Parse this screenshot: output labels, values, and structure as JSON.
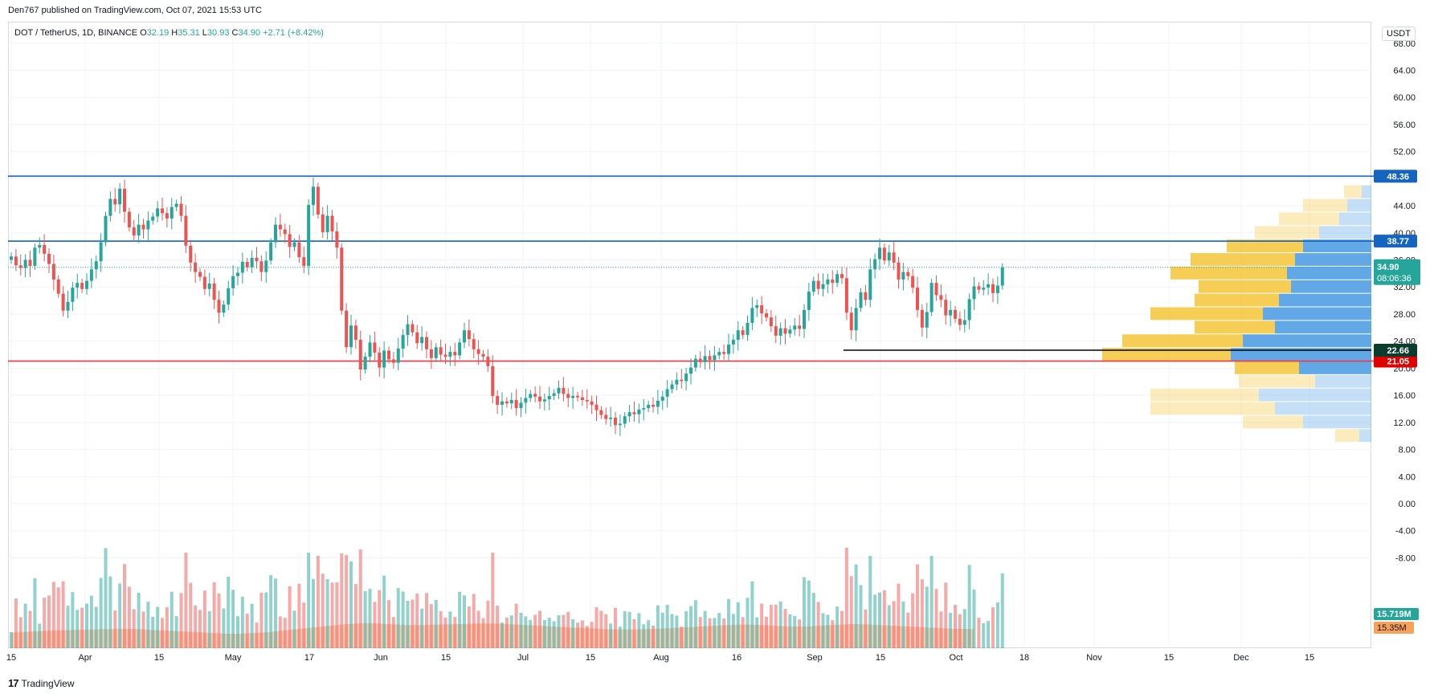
{
  "attribution": "Den767 published on TradingView.com, Oct 07, 2021 15:53 UTC",
  "legend": {
    "symbol": "DOT / TetherUS, 1D, BINANCE",
    "o_label": "O",
    "o": "32.19",
    "h_label": "H",
    "h": "35.31",
    "l_label": "L",
    "l": "30.93",
    "c_label": "C",
    "c": "34.90",
    "change": "+2.71 (+8.42%)"
  },
  "currency": "USDT",
  "brand": "TradingView",
  "colors": {
    "up": "#26a69a",
    "down": "#ef5350",
    "blue_line": "#1565c0",
    "red_line": "#f23645",
    "vp_blue": "#5aa3e6",
    "vp_yellow": "#f5c842",
    "vol_ma_area": "#f8a57c"
  },
  "chart_data": {
    "type": "candlestick",
    "symbol": "DOT / TetherUS",
    "interval": "1D",
    "exchange": "BINANCE",
    "y_axis": {
      "ticks": [
        "68.00",
        "64.00",
        "60.00",
        "56.00",
        "52.00",
        "48.00",
        "44.00",
        "40.00",
        "36.00",
        "32.00",
        "28.00",
        "24.00",
        "20.00",
        "16.00",
        "12.00",
        "8.00",
        "4.00",
        "0.00",
        "-4.00",
        "-8.00"
      ],
      "range": [
        -9,
        70
      ]
    },
    "x_axis": {
      "ticks": [
        "15",
        "Apr",
        "15",
        "May",
        "17",
        "Jun",
        "15",
        "Jul",
        "15",
        "Aug",
        "16",
        "Sep",
        "15",
        "Oct",
        "18",
        "Nov",
        "15",
        "Dec",
        "15"
      ]
    },
    "horizontal_lines": [
      {
        "price": 48.36,
        "label": "48.36",
        "color": "blue"
      },
      {
        "price": 38.77,
        "label": "38.77",
        "color": "blue"
      },
      {
        "price": 21.05,
        "label": "21.05",
        "color": "red"
      },
      {
        "price": 22.66,
        "label": "22.66",
        "color": "black",
        "from": "Sep"
      }
    ],
    "last_price": {
      "label": "34.90",
      "countdown": "08:06:36"
    },
    "volume_labels": {
      "current": "15.719M",
      "ma": "15.35M"
    },
    "closes": [
      36.5,
      35.2,
      34.8,
      36.0,
      35.1,
      37.8,
      38.2,
      36.9,
      35.4,
      33.1,
      31.0,
      28.5,
      29.8,
      31.9,
      32.6,
      31.7,
      32.9,
      34.6,
      35.8,
      38.6,
      42.5,
      45.0,
      44.2,
      46.5,
      43.1,
      40.8,
      39.6,
      41.2,
      40.5,
      41.8,
      42.4,
      43.6,
      42.9,
      42.1,
      43.8,
      44.3,
      42.5,
      38.1,
      35.6,
      34.2,
      33.5,
      31.7,
      32.5,
      30.1,
      28.2,
      29.4,
      31.8,
      33.6,
      34.1,
      35.7,
      34.9,
      36.3,
      35.8,
      34.2,
      35.9,
      38.6,
      41.2,
      40.5,
      39.8,
      37.9,
      38.6,
      36.4,
      35.1,
      44.1,
      46.8,
      42.7,
      40.1,
      42.5,
      40.2,
      37.8,
      28.5,
      23.1,
      26.3,
      24.2,
      19.8,
      21.7,
      23.8,
      22.3,
      20.1,
      22.6,
      21.3,
      20.8,
      22.9,
      24.9,
      26.5,
      25.3,
      23.7,
      24.6,
      22.8,
      21.5,
      23.1,
      22.0,
      21.7,
      22.4,
      21.9,
      23.8,
      25.6,
      24.3,
      22.8,
      22.1,
      21.7,
      20.3,
      15.9,
      14.6,
      15.1,
      14.8,
      15.3,
      14.1,
      14.9,
      15.6,
      16.2,
      15.8,
      15.1,
      15.4,
      15.9,
      16.3,
      17.1,
      16.2,
      15.6,
      15.9,
      15.7,
      15.3,
      15.1,
      14.6,
      13.8,
      13.1,
      12.5,
      12.7,
      11.6,
      11.8,
      12.9,
      13.5,
      13.2,
      13.9,
      14.1,
      14.6,
      14.3,
      15.2,
      15.8,
      16.9,
      17.6,
      18.3,
      18.1,
      19.2,
      20.1,
      21.4,
      20.9,
      21.8,
      21.2,
      21.9,
      22.4,
      22.1,
      23.5,
      24.2,
      25.6,
      24.9,
      26.7,
      28.9,
      29.3,
      28.1,
      27.5,
      26.2,
      24.8,
      25.9,
      25.1,
      25.7,
      26.3,
      25.8,
      28.6,
      31.3,
      32.9,
      31.7,
      32.4,
      33.1,
      32.6,
      33.9,
      33.3,
      28.2,
      25.6,
      28.9,
      31.2,
      30.1,
      34.6,
      36.1,
      37.8,
      35.9,
      37.1,
      35.6,
      33.1,
      34.2,
      33.6,
      31.9,
      28.6,
      26.0,
      28.3,
      32.6,
      30.8,
      30.1,
      27.8,
      28.6,
      27.3,
      26.4,
      27.1,
      30.2,
      32.1,
      31.6,
      31.9,
      32.4,
      31.1,
      32.2,
      34.9
    ],
    "volume_ma": [
      0.65,
      0.66,
      0.67,
      0.68,
      0.69,
      0.7,
      0.71,
      0.72,
      0.73,
      0.74,
      0.74,
      0.75,
      0.75,
      0.76,
      0.76,
      0.77,
      0.77,
      0.78,
      0.78,
      0.79,
      0.79,
      0.79,
      0.8,
      0.8,
      0.8,
      0.8,
      0.8,
      0.79,
      0.78,
      0.77,
      0.76,
      0.75,
      0.74,
      0.73,
      0.72,
      0.71,
      0.7,
      0.69,
      0.68,
      0.67,
      0.66,
      0.65,
      0.64,
      0.63,
      0.62,
      0.61,
      0.6,
      0.6,
      0.6,
      0.61,
      0.62,
      0.63,
      0.64,
      0.65,
      0.66,
      0.68,
      0.7,
      0.72,
      0.74,
      0.76,
      0.78,
      0.8,
      0.82,
      0.84,
      0.86,
      0.88,
      0.9,
      0.92,
      0.94,
      0.96,
      0.98,
      1.0,
      1.01,
      1.02,
      1.03,
      1.04,
      1.04,
      1.03,
      1.02,
      1.01,
      1.0,
      0.99,
      0.98,
      0.97,
      0.96,
      0.96,
      0.96,
      0.96,
      0.97,
      0.97,
      0.98,
      0.98,
      0.99,
      0.99,
      1.0,
      1.0,
      1.01,
      1.01,
      1.02,
      1.02,
      1.02,
      1.02,
      1.02,
      1.02,
      1.01,
      1.0,
      0.99,
      0.98,
      0.97,
      0.96,
      0.95,
      0.94,
      0.93,
      0.92,
      0.91,
      0.9,
      0.89,
      0.88,
      0.87,
      0.86,
      0.85,
      0.84,
      0.83,
      0.82,
      0.81,
      0.8,
      0.79,
      0.78,
      0.78,
      0.78,
      0.78,
      0.78,
      0.78,
      0.79,
      0.79,
      0.8,
      0.8,
      0.81,
      0.82,
      0.83,
      0.84,
      0.85,
      0.86,
      0.87,
      0.88,
      0.89,
      0.9,
      0.91,
      0.92,
      0.93,
      0.94,
      0.95,
      0.96,
      0.97,
      0.98,
      0.98,
      0.98,
      0.98,
      0.97,
      0.96,
      0.95,
      0.94,
      0.93,
      0.92,
      0.91,
      0.9,
      0.9,
      0.9,
      0.9,
      0.91,
      0.92,
      0.93,
      0.94,
      0.95,
      0.96,
      0.97,
      0.98,
      0.99,
      1.0,
      1.0,
      1.0,
      0.99,
      0.98,
      0.97,
      0.96,
      0.95,
      0.94,
      0.93,
      0.92,
      0.91,
      0.9,
      0.89,
      0.88,
      0.87,
      0.86,
      0.85,
      0.84,
      0.83,
      0.82,
      0.81,
      0.8,
      0.8,
      0.8,
      0.8,
      0.8
    ],
    "volume_profile": [
      {
        "price": 46,
        "blue": 12,
        "yellow": 22
      },
      {
        "price": 44,
        "blue": 30,
        "yellow": 55
      },
      {
        "price": 42,
        "blue": 40,
        "yellow": 75
      },
      {
        "price": 40,
        "blue": 65,
        "yellow": 80
      },
      {
        "price": 38,
        "blue": 85,
        "yellow": 95
      },
      {
        "price": 36,
        "blue": 95,
        "yellow": 130
      },
      {
        "price": 34,
        "blue": 105,
        "yellow": 145
      },
      {
        "price": 32,
        "blue": 100,
        "yellow": 115
      },
      {
        "price": 30,
        "blue": 115,
        "yellow": 105
      },
      {
        "price": 28,
        "blue": 135,
        "yellow": 140
      },
      {
        "price": 26,
        "blue": 120,
        "yellow": 100
      },
      {
        "price": 24,
        "blue": 160,
        "yellow": 150
      },
      {
        "price": 22,
        "blue": 175,
        "yellow": 160
      },
      {
        "price": 20,
        "blue": 90,
        "yellow": 80
      },
      {
        "price": 18,
        "blue": 70,
        "yellow": 95
      },
      {
        "price": 16,
        "blue": 140,
        "yellow": 135
      },
      {
        "price": 14,
        "blue": 120,
        "yellow": 155
      },
      {
        "price": 12,
        "blue": 85,
        "yellow": 75
      },
      {
        "price": 10,
        "blue": 15,
        "yellow": 30
      }
    ]
  }
}
